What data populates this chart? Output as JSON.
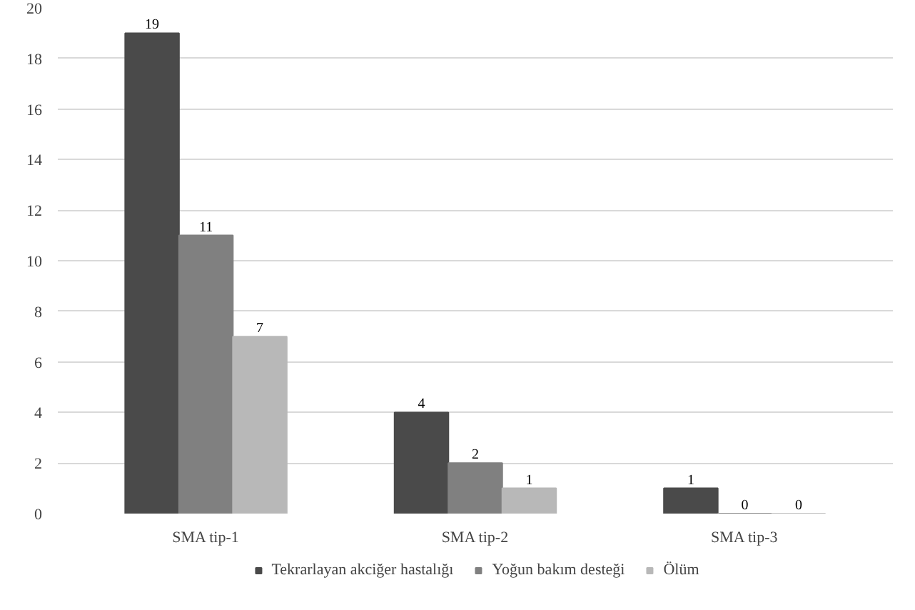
{
  "chart_data": {
    "type": "bar",
    "categories": [
      "SMA tip-1",
      "SMA tip-2",
      "SMA tip-3"
    ],
    "series": [
      {
        "name": "Tekrarlayan akciğer hastalığı",
        "color": "#4a4a4a",
        "values": [
          19,
          4,
          1
        ]
      },
      {
        "name": "Yoğun bakım desteği",
        "color": "#808080",
        "values": [
          11,
          2,
          0
        ]
      },
      {
        "name": "Ölüm",
        "color": "#b8b8b8",
        "values": [
          7,
          1,
          0
        ]
      }
    ],
    "ylim": [
      0,
      20
    ],
    "yticks": [
      0,
      2,
      4,
      6,
      8,
      10,
      12,
      14,
      16,
      18,
      20
    ],
    "grid": "y",
    "legend": "bottom",
    "data_labels": true
  }
}
